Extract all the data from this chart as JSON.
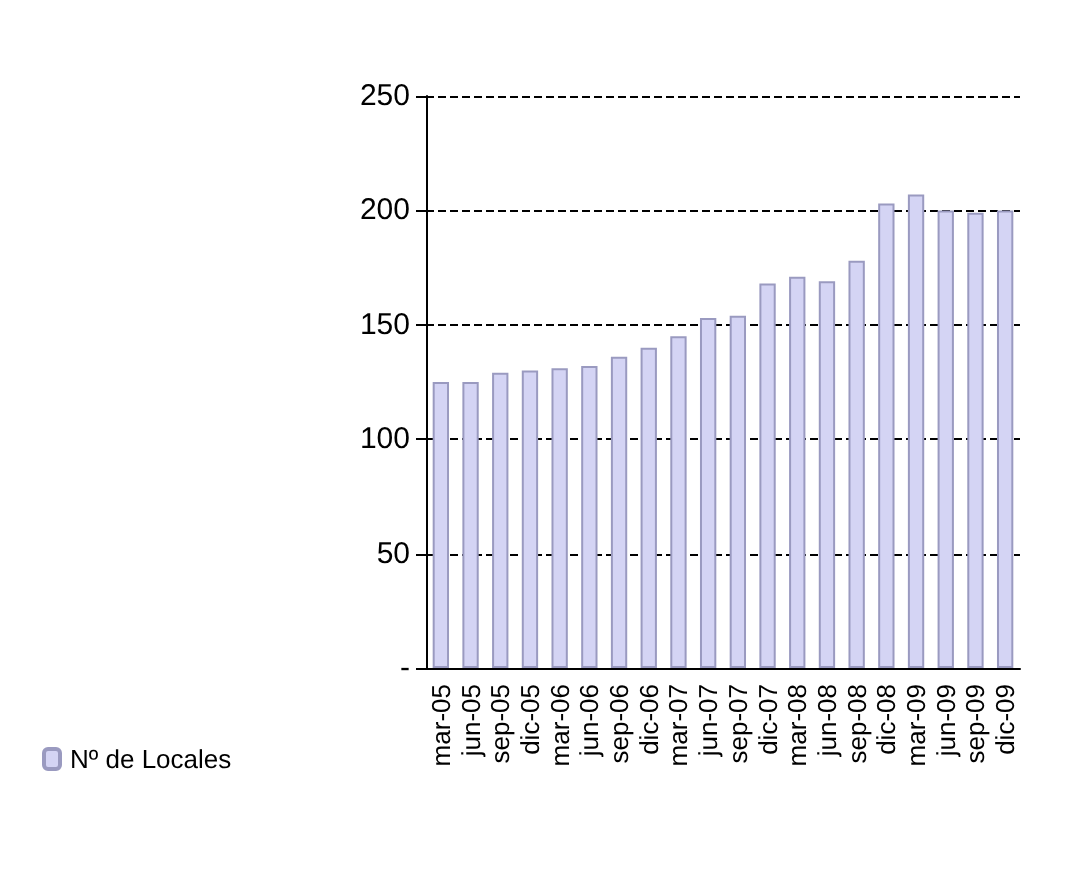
{
  "chart_data": {
    "type": "bar",
    "categories": [
      "mar-05",
      "jun-05",
      "sep-05",
      "dic-05",
      "mar-06",
      "jun-06",
      "sep-06",
      "dic-06",
      "mar-07",
      "jun-07",
      "sep-07",
      "dic-07",
      "mar-08",
      "jun-08",
      "sep-08",
      "dic-08",
      "mar-09",
      "jun-09",
      "sep-09",
      "dic-09"
    ],
    "series": [
      {
        "name": "Nº de Locales",
        "color": "#d4d4f4",
        "values": [
          125,
          125,
          129,
          130,
          131,
          132,
          136,
          140,
          145,
          153,
          154,
          168,
          171,
          169,
          178,
          203,
          207,
          200,
          199,
          200
        ]
      }
    ],
    "ylim": [
      0,
      250
    ],
    "yticks": [
      {
        "value": 0,
        "label": "-"
      },
      50,
      100,
      150,
      200,
      250
    ],
    "grid": "y",
    "legend": "left"
  }
}
